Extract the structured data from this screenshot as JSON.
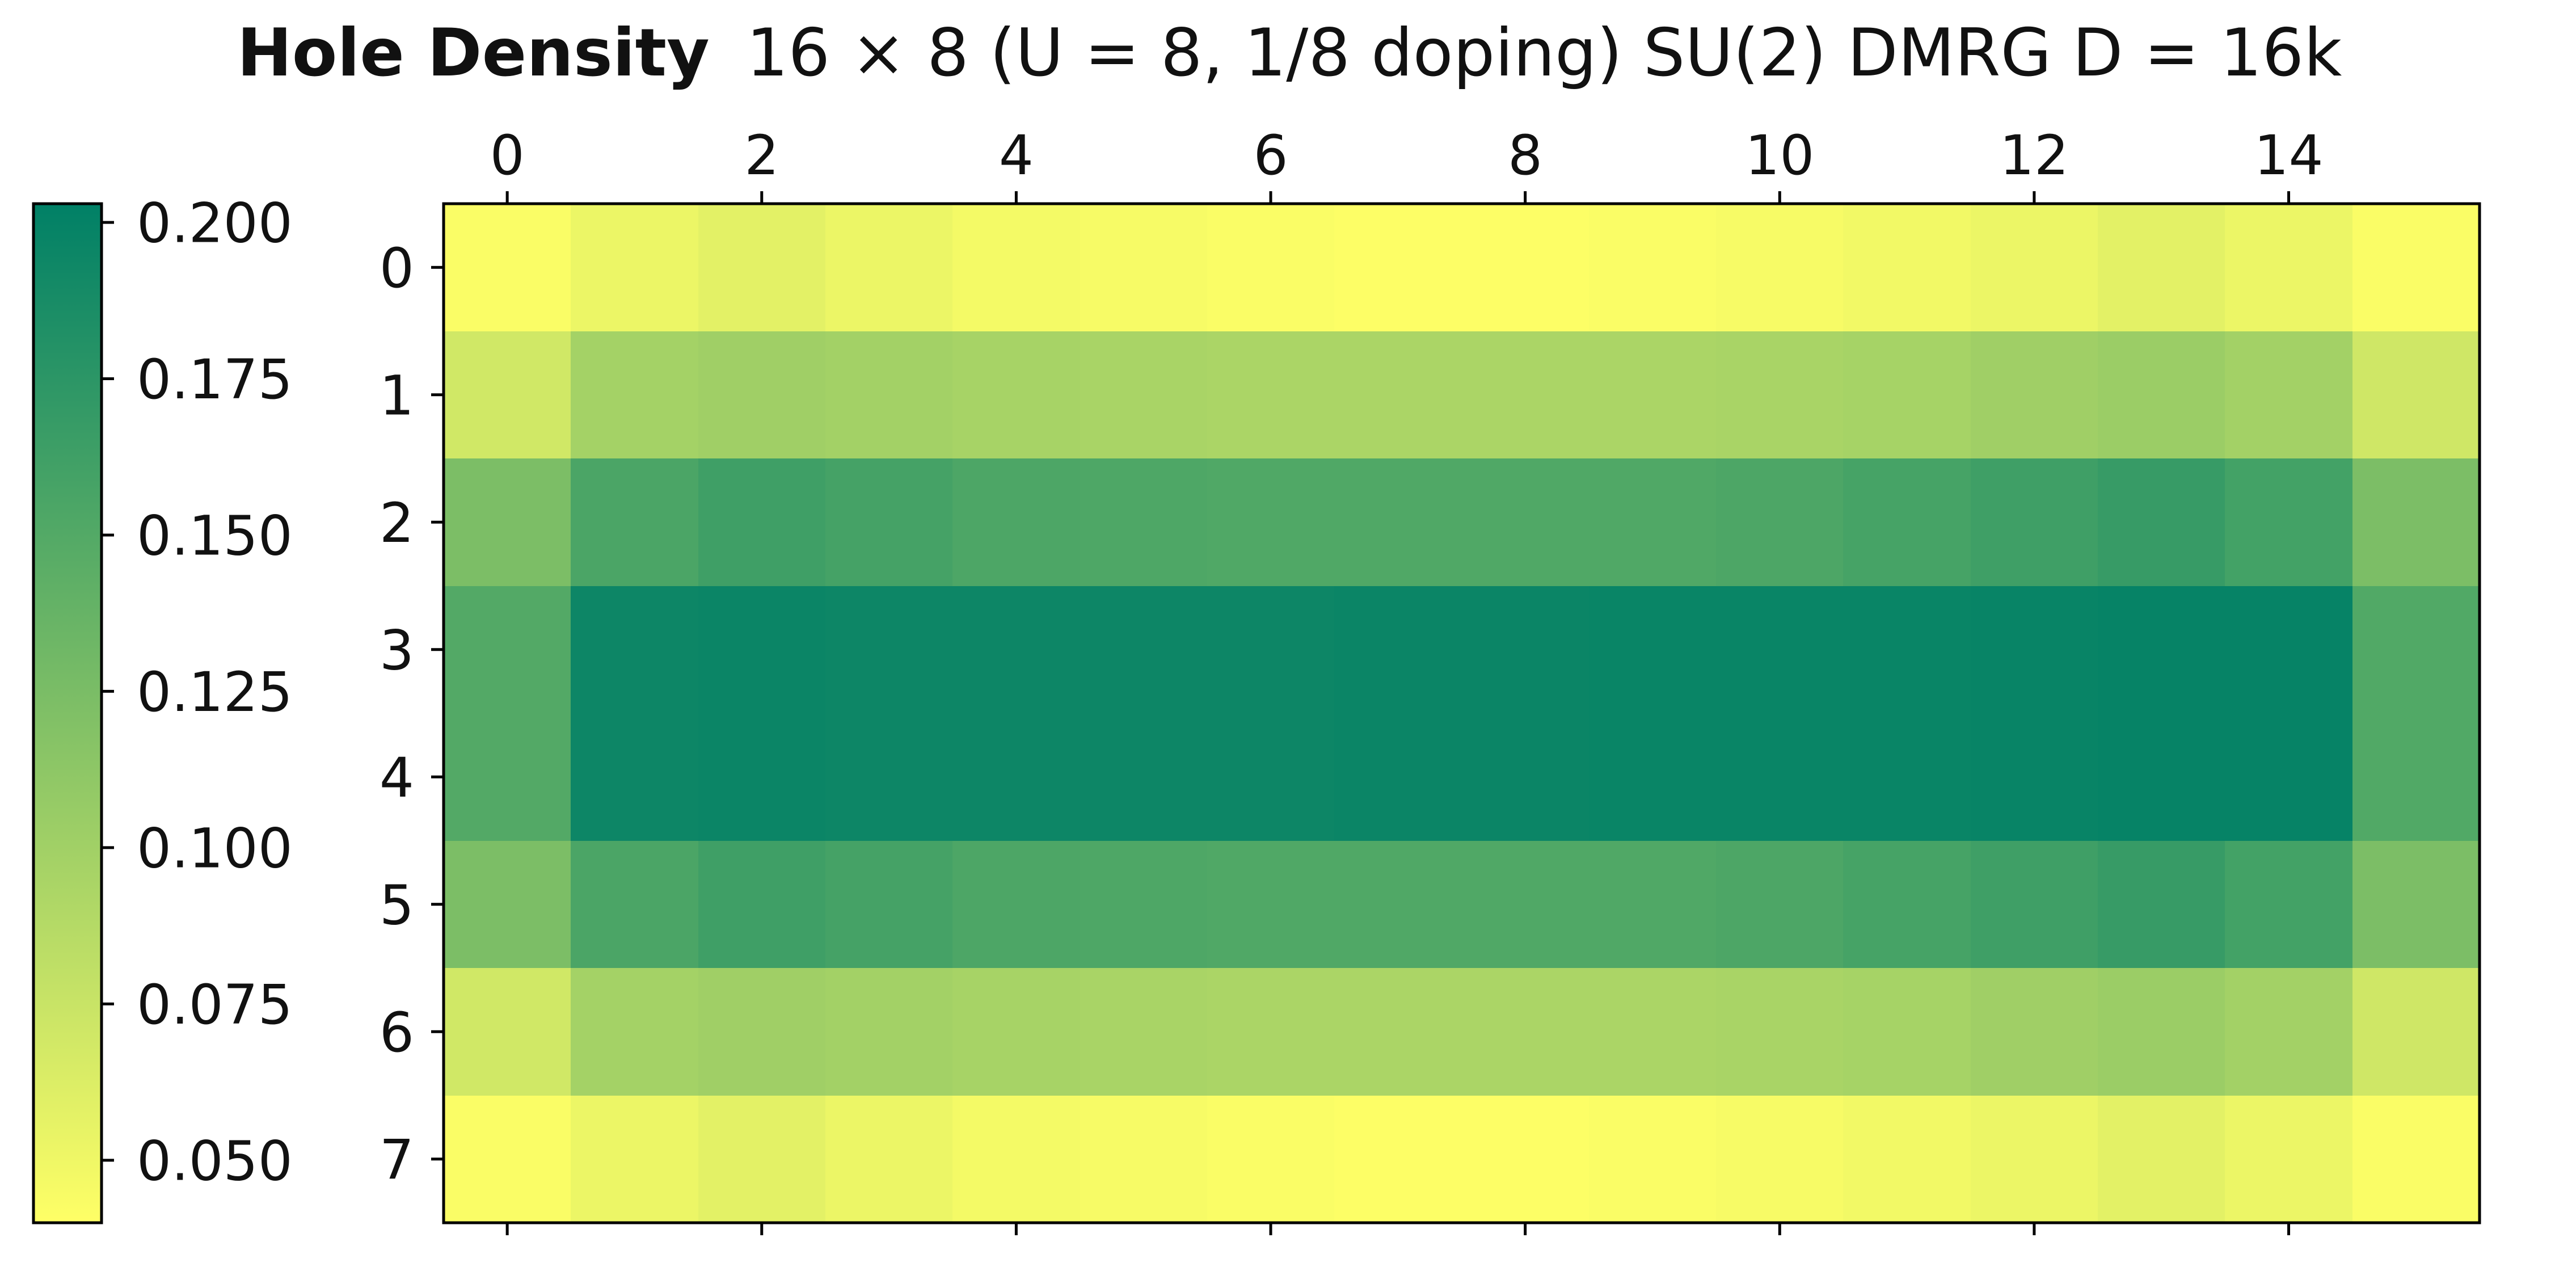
{
  "chart_data": {
    "type": "heatmap",
    "title_bold": "Hole Density",
    "title_rest": "16 × 8 (U = 8, 1/8 doping) SU(2) DMRG D = 16k",
    "x_ticks": [
      "0",
      "2",
      "4",
      "6",
      "8",
      "10",
      "12",
      "14"
    ],
    "y_ticks": [
      "0",
      "1",
      "2",
      "3",
      "4",
      "5",
      "6",
      "7"
    ],
    "x_tick_values": [
      0,
      2,
      4,
      6,
      8,
      10,
      12,
      14
    ],
    "y_tick_values": [
      0,
      1,
      2,
      3,
      4,
      5,
      6,
      7
    ],
    "x_position": "top",
    "xlim": [
      -0.5,
      15.5
    ],
    "ylim": [
      7.5,
      -0.5
    ],
    "colorbar": {
      "placement": "left",
      "range": [
        0.04,
        0.203
      ],
      "ticks": [
        "0.200",
        "0.175",
        "0.150",
        "0.125",
        "0.100",
        "0.075",
        "0.050"
      ],
      "tick_values": [
        0.2,
        0.175,
        0.15,
        0.125,
        0.1,
        0.075,
        0.05
      ],
      "colormap": "summer_r",
      "color_low": "#ffff66",
      "color_high": "#008066"
    },
    "cols": 16,
    "rows": 8,
    "values": [
      [
        0.043,
        0.052,
        0.058,
        0.052,
        0.047,
        0.045,
        0.043,
        0.041,
        0.041,
        0.043,
        0.045,
        0.048,
        0.052,
        0.058,
        0.052,
        0.043
      ],
      [
        0.07,
        0.098,
        0.101,
        0.099,
        0.096,
        0.095,
        0.094,
        0.094,
        0.094,
        0.094,
        0.095,
        0.097,
        0.101,
        0.104,
        0.099,
        0.071
      ],
      [
        0.124,
        0.155,
        0.163,
        0.159,
        0.154,
        0.153,
        0.152,
        0.152,
        0.152,
        0.152,
        0.154,
        0.158,
        0.163,
        0.168,
        0.16,
        0.124
      ],
      [
        0.15,
        0.195,
        0.196,
        0.195,
        0.195,
        0.195,
        0.195,
        0.196,
        0.196,
        0.197,
        0.197,
        0.197,
        0.198,
        0.199,
        0.199,
        0.151
      ],
      [
        0.15,
        0.195,
        0.196,
        0.195,
        0.195,
        0.195,
        0.195,
        0.196,
        0.196,
        0.197,
        0.197,
        0.197,
        0.198,
        0.199,
        0.199,
        0.151
      ],
      [
        0.124,
        0.155,
        0.163,
        0.159,
        0.154,
        0.153,
        0.152,
        0.152,
        0.152,
        0.152,
        0.154,
        0.158,
        0.163,
        0.168,
        0.16,
        0.124
      ],
      [
        0.07,
        0.098,
        0.101,
        0.099,
        0.096,
        0.095,
        0.094,
        0.094,
        0.094,
        0.094,
        0.095,
        0.097,
        0.101,
        0.104,
        0.099,
        0.071
      ],
      [
        0.043,
        0.052,
        0.058,
        0.052,
        0.047,
        0.045,
        0.043,
        0.041,
        0.041,
        0.043,
        0.045,
        0.048,
        0.052,
        0.058,
        0.052,
        0.043
      ]
    ]
  }
}
